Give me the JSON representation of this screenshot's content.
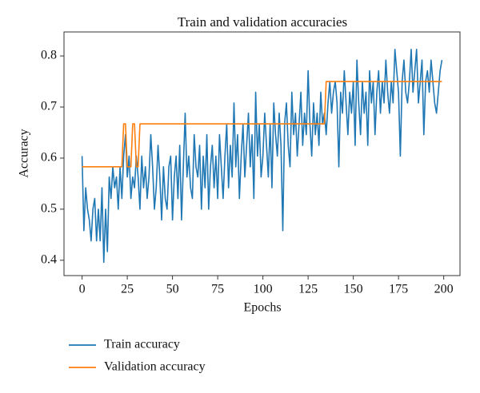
{
  "chart_data": {
    "type": "line",
    "title": "Train and validation accuracies",
    "xlabel": "Epochs",
    "ylabel": "Accuracy",
    "x": [
      0,
      1,
      2,
      3,
      4,
      5,
      6,
      7,
      8,
      9,
      10,
      11,
      12,
      13,
      14,
      15,
      16,
      17,
      18,
      19,
      20,
      21,
      22,
      23,
      24,
      25,
      26,
      27,
      28,
      29,
      30,
      31,
      32,
      33,
      34,
      35,
      36,
      37,
      38,
      39,
      40,
      41,
      42,
      43,
      44,
      45,
      46,
      47,
      48,
      49,
      50,
      51,
      52,
      53,
      54,
      55,
      56,
      57,
      58,
      59,
      60,
      61,
      62,
      63,
      64,
      65,
      66,
      67,
      68,
      69,
      70,
      71,
      72,
      73,
      74,
      75,
      76,
      77,
      78,
      79,
      80,
      81,
      82,
      83,
      84,
      85,
      86,
      87,
      88,
      89,
      90,
      91,
      92,
      93,
      94,
      95,
      96,
      97,
      98,
      99,
      100,
      101,
      102,
      103,
      104,
      105,
      106,
      107,
      108,
      109,
      110,
      111,
      112,
      113,
      114,
      115,
      116,
      117,
      118,
      119,
      120,
      121,
      122,
      123,
      124,
      125,
      126,
      127,
      128,
      129,
      130,
      131,
      132,
      133,
      134,
      135,
      136,
      137,
      138,
      139,
      140,
      141,
      142,
      143,
      144,
      145,
      146,
      147,
      148,
      149,
      150,
      151,
      152,
      153,
      154,
      155,
      156,
      157,
      158,
      159,
      160,
      161,
      162,
      163,
      164,
      165,
      166,
      167,
      168,
      169,
      170,
      171,
      172,
      173,
      174,
      175,
      176,
      177,
      178,
      179,
      180,
      181,
      182,
      183,
      184,
      185,
      186,
      187,
      188,
      189,
      190,
      191,
      192,
      193,
      194,
      195,
      196,
      197,
      198,
      199
    ],
    "series": [
      {
        "name": "Train accuracy",
        "color": "#1f77b4",
        "values": [
          0.604,
          0.458,
          0.542,
          0.5,
          0.479,
          0.438,
          0.5,
          0.521,
          0.438,
          0.5,
          0.438,
          0.542,
          0.396,
          0.5,
          0.417,
          0.563,
          0.521,
          0.583,
          0.542,
          0.563,
          0.5,
          0.583,
          0.521,
          0.604,
          0.646,
          0.563,
          0.604,
          0.521,
          0.563,
          0.542,
          0.604,
          0.563,
          0.5,
          0.604,
          0.542,
          0.583,
          0.521,
          0.563,
          0.646,
          0.583,
          0.5,
          0.542,
          0.625,
          0.563,
          0.479,
          0.583,
          0.521,
          0.5,
          0.583,
          0.604,
          0.479,
          0.563,
          0.604,
          0.521,
          0.625,
          0.479,
          0.583,
          0.688,
          0.563,
          0.604,
          0.542,
          0.521,
          0.646,
          0.583,
          0.563,
          0.625,
          0.5,
          0.604,
          0.542,
          0.646,
          0.5,
          0.583,
          0.625,
          0.542,
          0.604,
          0.521,
          0.646,
          0.583,
          0.521,
          0.604,
          0.667,
          0.542,
          0.625,
          0.563,
          0.708,
          0.583,
          0.646,
          0.521,
          0.604,
          0.667,
          0.563,
          0.625,
          0.688,
          0.583,
          0.646,
          0.521,
          0.729,
          0.604,
          0.667,
          0.563,
          0.604,
          0.688,
          0.625,
          0.563,
          0.667,
          0.542,
          0.708,
          0.646,
          0.604,
          0.688,
          0.625,
          0.458,
          0.667,
          0.708,
          0.625,
          0.583,
          0.729,
          0.646,
          0.688,
          0.604,
          0.667,
          0.729,
          0.625,
          0.688,
          0.646,
          0.771,
          0.667,
          0.604,
          0.708,
          0.646,
          0.688,
          0.625,
          0.729,
          0.667,
          0.688,
          0.646,
          0.708,
          0.75,
          0.688,
          0.729,
          0.75,
          0.708,
          0.583,
          0.729,
          0.688,
          0.771,
          0.708,
          0.646,
          0.729,
          0.688,
          0.75,
          0.625,
          0.792,
          0.708,
          0.646,
          0.75,
          0.688,
          0.729,
          0.625,
          0.771,
          0.708,
          0.75,
          0.646,
          0.729,
          0.771,
          0.688,
          0.75,
          0.708,
          0.792,
          0.729,
          0.688,
          0.75,
          0.708,
          0.813,
          0.771,
          0.729,
          0.604,
          0.75,
          0.792,
          0.729,
          0.708,
          0.75,
          0.813,
          0.729,
          0.771,
          0.813,
          0.708,
          0.75,
          0.792,
          0.646,
          0.75,
          0.771,
          0.729,
          0.792,
          0.75,
          0.708,
          0.688,
          0.729,
          0.771,
          0.792
        ]
      },
      {
        "name": "Validation accuracy",
        "color": "#ff7f0e",
        "values": [
          0.583,
          0.583,
          0.583,
          0.583,
          0.583,
          0.583,
          0.583,
          0.583,
          0.583,
          0.583,
          0.583,
          0.583,
          0.583,
          0.583,
          0.583,
          0.583,
          0.583,
          0.583,
          0.583,
          0.583,
          0.583,
          0.583,
          0.583,
          0.667,
          0.667,
          0.583,
          0.583,
          0.583,
          0.667,
          0.667,
          0.583,
          0.583,
          0.667,
          0.667,
          0.667,
          0.667,
          0.667,
          0.667,
          0.667,
          0.667,
          0.667,
          0.667,
          0.667,
          0.667,
          0.667,
          0.667,
          0.667,
          0.667,
          0.667,
          0.667,
          0.667,
          0.667,
          0.667,
          0.667,
          0.667,
          0.667,
          0.667,
          0.667,
          0.667,
          0.667,
          0.667,
          0.667,
          0.667,
          0.667,
          0.667,
          0.667,
          0.667,
          0.667,
          0.667,
          0.667,
          0.667,
          0.667,
          0.667,
          0.667,
          0.667,
          0.667,
          0.667,
          0.667,
          0.667,
          0.667,
          0.667,
          0.667,
          0.667,
          0.667,
          0.667,
          0.667,
          0.667,
          0.667,
          0.667,
          0.667,
          0.667,
          0.667,
          0.667,
          0.667,
          0.667,
          0.667,
          0.667,
          0.667,
          0.667,
          0.667,
          0.667,
          0.667,
          0.667,
          0.667,
          0.667,
          0.667,
          0.667,
          0.667,
          0.667,
          0.667,
          0.667,
          0.667,
          0.667,
          0.667,
          0.667,
          0.667,
          0.667,
          0.667,
          0.667,
          0.667,
          0.667,
          0.667,
          0.667,
          0.667,
          0.667,
          0.667,
          0.667,
          0.667,
          0.667,
          0.667,
          0.667,
          0.667,
          0.667,
          0.667,
          0.667,
          0.75,
          0.75,
          0.75,
          0.75,
          0.75,
          0.75,
          0.75,
          0.75,
          0.75,
          0.75,
          0.75,
          0.75,
          0.75,
          0.75,
          0.75,
          0.75,
          0.75,
          0.75,
          0.75,
          0.75,
          0.75,
          0.75,
          0.75,
          0.75,
          0.75,
          0.75,
          0.75,
          0.75,
          0.75,
          0.75,
          0.75,
          0.75,
          0.75,
          0.75,
          0.75,
          0.75,
          0.75,
          0.75,
          0.75,
          0.75,
          0.75,
          0.75,
          0.75,
          0.75,
          0.75,
          0.75,
          0.75,
          0.75,
          0.75,
          0.75,
          0.75,
          0.75,
          0.75,
          0.75,
          0.75,
          0.75,
          0.75,
          0.75,
          0.75,
          0.75,
          0.75,
          0.75,
          0.75,
          0.75,
          0.75
        ]
      }
    ],
    "xlim": [
      -10,
      209
    ],
    "ylim": [
      0.37,
      0.847
    ],
    "xticks": [
      0,
      25,
      50,
      75,
      100,
      125,
      150,
      175,
      200
    ],
    "yticks": [
      0.4,
      0.5,
      0.6,
      0.7,
      0.8
    ],
    "grid": false,
    "legend": "below-left"
  }
}
